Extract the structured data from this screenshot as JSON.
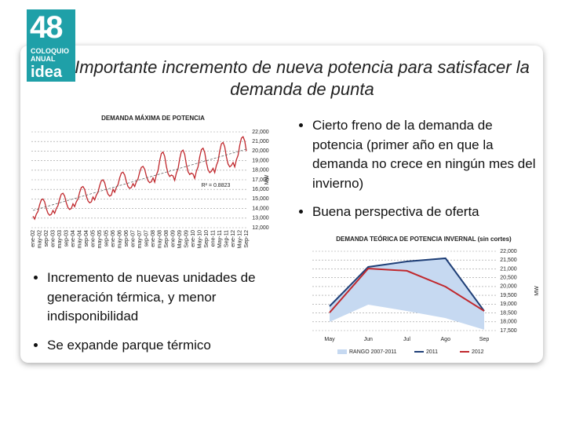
{
  "logo": {
    "number": "48",
    "line1": "COLOQUIO",
    "line2": "ANUAL",
    "brand": "idea"
  },
  "slide": {
    "title": "Importante incremento de nueva potencia para satisfacer la demanda de punta",
    "bullets_right": [
      "Cierto freno de la demanda de potencia (primer año en que la demanda no crece en ningún mes del invierno)",
      "Buena perspectiva de oferta"
    ],
    "bullets_left": [
      "Incremento de nuevas unidades de generación térmica, y menor indisponibilidad",
      "Se expande parque térmico"
    ]
  },
  "chart_data": [
    {
      "type": "line",
      "title": "DEMANDA MÁXIMA DE POTENCIA",
      "ylabel": "MW",
      "annotation": "R² = 0.8823",
      "categories": [
        "ene-02",
        null,
        null,
        null,
        "may-02",
        null,
        null,
        null,
        "sep-02",
        null,
        null,
        null,
        "ene-03",
        null,
        null,
        null,
        "may-03",
        null,
        null,
        null,
        "sep-03",
        null,
        null,
        null,
        "ene-04",
        null,
        null,
        null,
        "may-04",
        null,
        null,
        null,
        "sep-04",
        null,
        null,
        null,
        "ene-05",
        null,
        null,
        null,
        "may-05",
        null,
        null,
        null,
        "sep-05",
        null,
        null,
        null,
        "ene-06",
        null,
        null,
        null,
        "may-06",
        null,
        null,
        null,
        "sep-06",
        null,
        null,
        null,
        "ene-07",
        null,
        null,
        null,
        "may-07",
        null,
        null,
        null,
        "sep-07",
        null,
        null,
        null,
        "ene-08",
        null,
        null,
        null,
        "may-08",
        null,
        null,
        null,
        "Sep-08",
        null,
        null,
        null,
        "ene-09",
        null,
        null,
        null,
        "May-09",
        null,
        null,
        null,
        "Sep-09",
        null,
        null,
        null,
        "ene-10",
        null,
        null,
        null,
        "May-10",
        null,
        null,
        null,
        "Sep-10",
        null,
        null,
        null,
        "ene-11",
        null,
        null,
        null,
        "May-11",
        null,
        null,
        null,
        "Sep-11",
        null,
        null,
        null,
        "ene-12",
        null,
        null,
        null,
        "May-12",
        null,
        null,
        null,
        "Sep-12"
      ],
      "series": [
        {
          "color": "#c0282d",
          "values": [
            13200,
            12900,
            13400,
            13700,
            14400,
            14900,
            15000,
            14700,
            14000,
            13500,
            13300,
            13400,
            13800,
            13500,
            14000,
            14300,
            15000,
            15500,
            15600,
            15300,
            14600,
            14100,
            13900,
            14000,
            14500,
            14200,
            14700,
            15000,
            15700,
            16200,
            16300,
            16000,
            15300,
            14800,
            14600,
            14700,
            15200,
            14900,
            15400,
            15700,
            16400,
            16900,
            17000,
            16700,
            16000,
            15500,
            15300,
            15400,
            16000,
            15700,
            16200,
            16500,
            17200,
            17700,
            17800,
            17500,
            16800,
            16300,
            16100,
            16200,
            16600,
            16300,
            16800,
            17100,
            17800,
            18300,
            18400,
            18100,
            17400,
            16900,
            16700,
            16800,
            17200,
            16750,
            17500,
            17950,
            19000,
            19750,
            19900,
            19450,
            18400,
            17650,
            17350,
            17500,
            17400,
            16950,
            17700,
            18150,
            19200,
            19950,
            20100,
            19650,
            18600,
            17850,
            17550,
            17700,
            17600,
            17150,
            17900,
            18350,
            19400,
            20150,
            20300,
            19850,
            18800,
            18050,
            17750,
            17900,
            18200,
            17750,
            18500,
            18950,
            20000,
            20750,
            20900,
            20450,
            19400,
            18650,
            18350,
            18500,
            18800,
            18350,
            19100,
            19550,
            20600,
            21350,
            21500,
            21050,
            20000
          ]
        }
      ],
      "ylim": [
        12000,
        22000
      ],
      "yticks": [
        {
          "value": 12000,
          "label": "12,000"
        },
        {
          "value": 13000,
          "label": "13,000"
        },
        {
          "value": 14000,
          "label": "14,000"
        },
        {
          "value": 15000,
          "label": "15,000"
        },
        {
          "value": 16000,
          "label": "16,000"
        },
        {
          "value": 17000,
          "label": "17,000"
        },
        {
          "value": 18000,
          "label": "18,000"
        },
        {
          "value": 19000,
          "label": "19,000"
        },
        {
          "value": 20000,
          "label": "20,000"
        },
        {
          "value": 21000,
          "label": "21,000"
        },
        {
          "value": 22000,
          "label": "22,000"
        }
      ],
      "grid": true
    },
    {
      "type": "line",
      "title": "DEMANDA TEÓRICA DE POTENCIA INVERNAL (sin cortes)",
      "ylabel": "MW",
      "categories": [
        "May",
        "Jun",
        "Jul",
        "Ago",
        "Sep"
      ],
      "series": [
        {
          "name": "RANGO 2007-2011",
          "color": "#c6d9f1",
          "low": [
            17990,
            18970,
            18610,
            18210,
            17550
          ],
          "high": [
            18970,
            21100,
            21420,
            21600,
            18600
          ]
        },
        {
          "name": "2011",
          "color": "#1f3f77",
          "values": [
            18880,
            21110,
            21420,
            21600,
            18610
          ]
        },
        {
          "name": "2012",
          "color": "#c0282d",
          "values": [
            18520,
            21020,
            20890,
            19990,
            18610
          ]
        }
      ],
      "ylim": [
        17500,
        22000
      ],
      "yticks": [
        {
          "value": 17500,
          "label": "17,500"
        },
        {
          "value": 18000,
          "label": "18,000"
        },
        {
          "value": 18500,
          "label": "18,500"
        },
        {
          "value": 19000,
          "label": "19,000"
        },
        {
          "value": 19500,
          "label": "19,500"
        },
        {
          "value": 20000,
          "label": "20,000"
        },
        {
          "value": 20500,
          "label": "20,500"
        },
        {
          "value": 21000,
          "label": "21,000"
        },
        {
          "value": 21500,
          "label": "21,500"
        },
        {
          "value": 22000,
          "label": "22,000"
        }
      ],
      "grid": true
    }
  ]
}
